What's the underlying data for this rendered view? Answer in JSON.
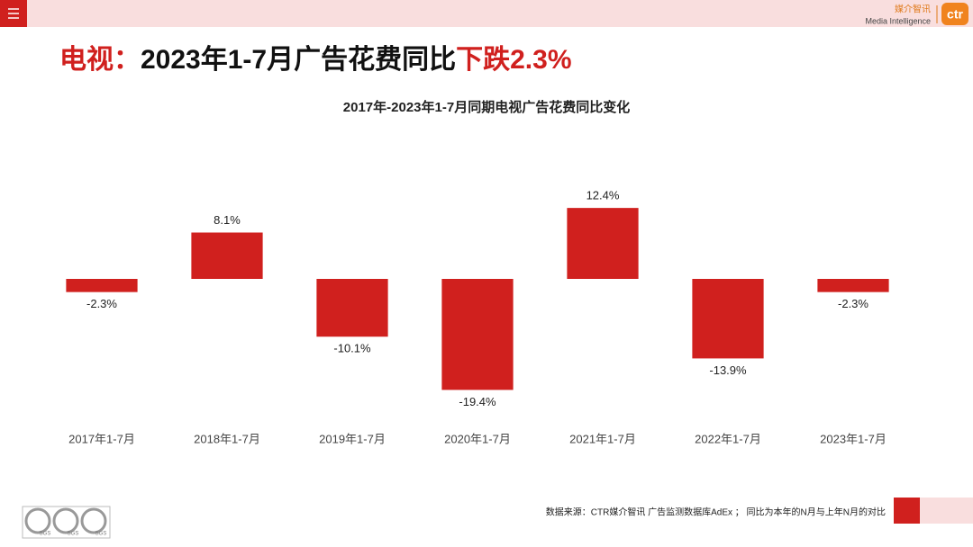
{
  "brand": {
    "cn": "媒介智讯",
    "en": "Media Intelligence",
    "logo": "ctr"
  },
  "headline": [
    "电视：",
    "2023年1-7月广告花费同比",
    "下跌2.3%"
  ],
  "chart_data": {
    "type": "bar",
    "title": "2017年-2023年1-7月同期电视广告花费同比变化",
    "categories": [
      "2017年1-7月",
      "2018年1-7月",
      "2019年1-7月",
      "2020年1-7月",
      "2021年1-7月",
      "2022年1-7月",
      "2023年1-7月"
    ],
    "values": [
      -2.3,
      8.1,
      -10.1,
      -19.4,
      12.4,
      -13.9,
      -2.3
    ],
    "value_labels": [
      "-2.3%",
      "8.1%",
      "-10.1%",
      "-19.4%",
      "12.4%",
      "-13.9%",
      "-2.3%"
    ],
    "color": "#d0201e",
    "ylim": [
      -25,
      25
    ],
    "grid": false
  },
  "footer": {
    "source": "数据来源：CTR媒介智讯 广告监测数据库AdEx ； 同比为本年的N月与上年N月的对比"
  },
  "certification": [
    "SGS",
    "SGS",
    "SGS"
  ]
}
